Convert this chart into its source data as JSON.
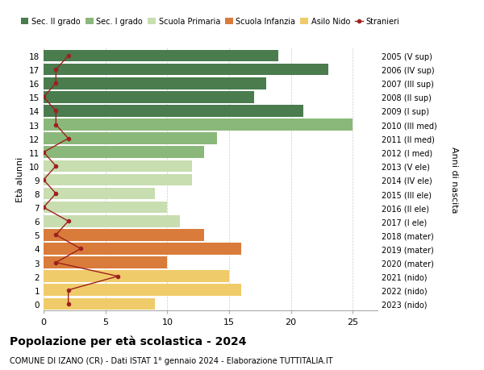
{
  "ages": [
    18,
    17,
    16,
    15,
    14,
    13,
    12,
    11,
    10,
    9,
    8,
    7,
    6,
    5,
    4,
    3,
    2,
    1,
    0
  ],
  "bar_values": [
    19,
    23,
    18,
    17,
    21,
    25,
    14,
    13,
    12,
    12,
    9,
    10,
    11,
    13,
    16,
    10,
    15,
    16,
    9
  ],
  "bar_colors": [
    "#4a7c4e",
    "#4a7c4e",
    "#4a7c4e",
    "#4a7c4e",
    "#4a7c4e",
    "#8ab87a",
    "#8ab87a",
    "#8ab87a",
    "#c8ddb0",
    "#c8ddb0",
    "#c8ddb0",
    "#c8ddb0",
    "#c8ddb0",
    "#d97b3a",
    "#d97b3a",
    "#d97b3a",
    "#f0cb6a",
    "#f0cb6a",
    "#f0cb6a"
  ],
  "stranieri_values": [
    2,
    1,
    1,
    0,
    1,
    1,
    2,
    0,
    1,
    0,
    1,
    0,
    2,
    1,
    3,
    1,
    6,
    2,
    2
  ],
  "right_labels": [
    "2005 (V sup)",
    "2006 (IV sup)",
    "2007 (III sup)",
    "2008 (II sup)",
    "2009 (I sup)",
    "2010 (III med)",
    "2011 (II med)",
    "2012 (I med)",
    "2013 (V ele)",
    "2014 (IV ele)",
    "2015 (III ele)",
    "2016 (II ele)",
    "2017 (I ele)",
    "2018 (mater)",
    "2019 (mater)",
    "2020 (mater)",
    "2021 (nido)",
    "2022 (nido)",
    "2023 (nido)"
  ],
  "legend_labels": [
    "Sec. II grado",
    "Sec. I grado",
    "Scuola Primaria",
    "Scuola Infanzia",
    "Asilo Nido",
    "Stranieri"
  ],
  "legend_colors": [
    "#4a7c4e",
    "#8ab87a",
    "#c8ddb0",
    "#d97b3a",
    "#f0cb6a",
    "#cc2222"
  ],
  "ylabel": "Età alunni",
  "right_ylabel": "Anni di nascita",
  "title": "Popolazione per età scolastica - 2024",
  "subtitle": "COMUNE DI IZANO (CR) - Dati ISTAT 1° gennaio 2024 - Elaborazione TUTTITALIA.IT",
  "xlim": [
    0,
    27
  ],
  "xticks": [
    0,
    5,
    10,
    15,
    20,
    25
  ],
  "stranieri_color": "#9e2020",
  "background_color": "#ffffff",
  "grid_color": "#cccccc"
}
